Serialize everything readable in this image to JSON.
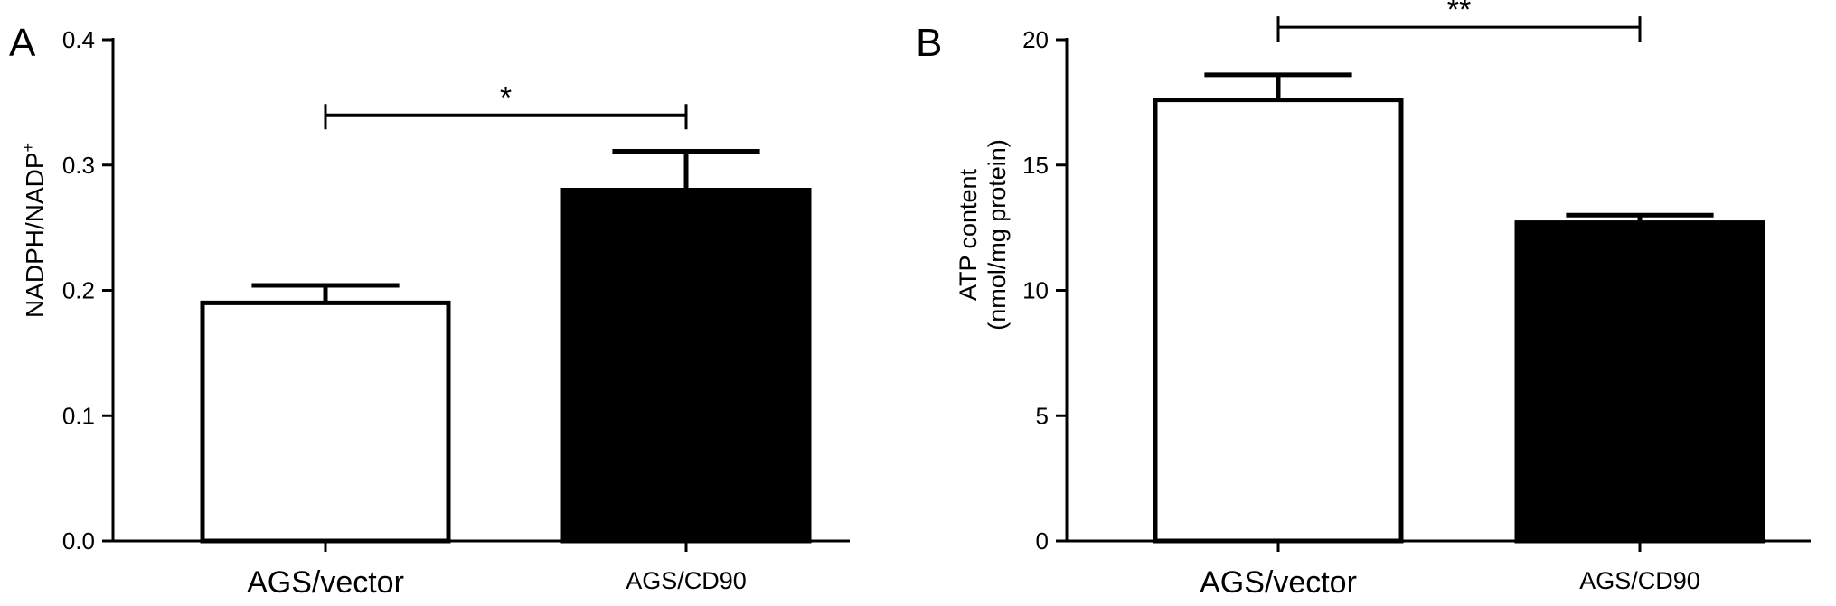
{
  "chart_data": [
    {
      "panel_label": "A",
      "type": "bar",
      "categories": [
        "AGS/vector",
        "AGS/CD90"
      ],
      "values": [
        0.19,
        0.28
      ],
      "errors": [
        0.014,
        0.031
      ],
      "bar_fills": [
        "#ffffff",
        "#000000"
      ],
      "ylabel_main": "NADPH/NADP",
      "ylabel_sup": "+",
      "ylim": [
        0,
        0.4
      ],
      "yticks": [
        "0.0",
        "0.1",
        "0.2",
        "0.3",
        "0.4"
      ],
      "significance": {
        "between": [
          0,
          1
        ],
        "label": "*",
        "level": 0.34
      }
    },
    {
      "panel_label": "B",
      "type": "bar",
      "categories": [
        "AGS/vector",
        "AGS/CD90"
      ],
      "values": [
        17.6,
        12.7
      ],
      "errors": [
        1.0,
        0.3
      ],
      "bar_fills": [
        "#ffffff",
        "#000000"
      ],
      "ylabel_line1": "ATP content",
      "ylabel_line2": "(nmol/mg protein)",
      "ylim": [
        0,
        20
      ],
      "yticks": [
        "0",
        "5",
        "10",
        "15",
        "20"
      ],
      "significance": {
        "between": [
          0,
          1
        ],
        "label": "**",
        "level": 20.5
      }
    }
  ]
}
